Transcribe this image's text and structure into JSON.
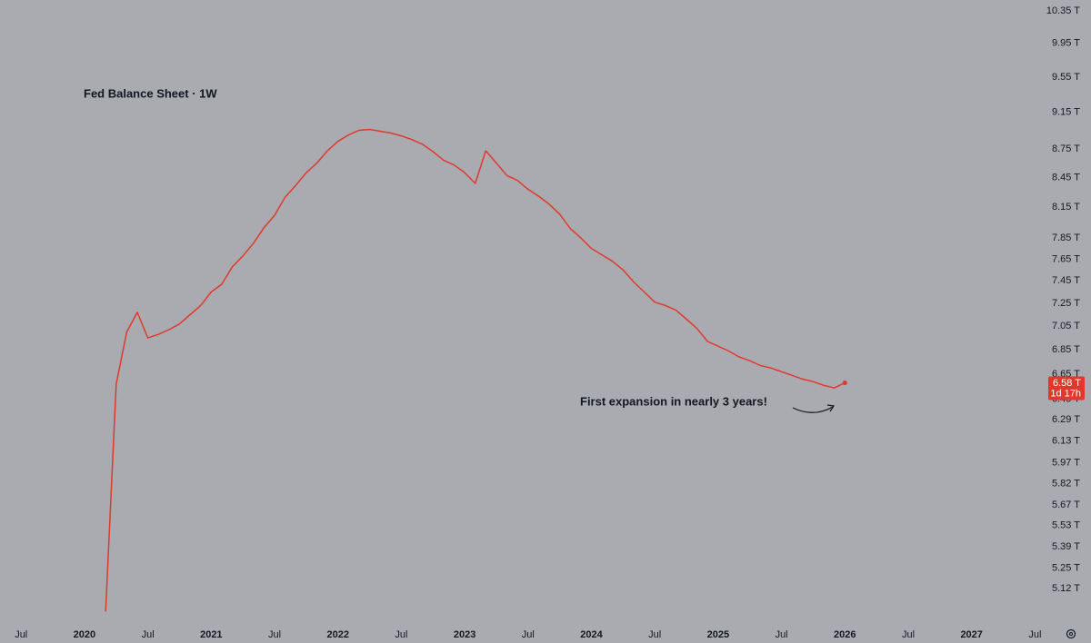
{
  "chart_data": {
    "type": "line",
    "title": "Fed Balance Sheet · 1W",
    "annotation": "First expansion in nearly 3 years!",
    "color": "#e0392b",
    "log_scale": true,
    "grid": false,
    "x": [
      "2020-03",
      "2020-04",
      "2020-05",
      "2020-06",
      "2020-07",
      "2020-08",
      "2020-09",
      "2020-10",
      "2020-11",
      "2020-12",
      "2021-01",
      "2021-02",
      "2021-03",
      "2021-04",
      "2021-05",
      "2021-06",
      "2021-07",
      "2021-08",
      "2021-09",
      "2021-10",
      "2021-11",
      "2021-12",
      "2022-01",
      "2022-02",
      "2022-03",
      "2022-04",
      "2022-05",
      "2022-06",
      "2022-07",
      "2022-08",
      "2022-09",
      "2022-10",
      "2022-11",
      "2022-12",
      "2023-01",
      "2023-02",
      "2023-03",
      "2023-04",
      "2023-05",
      "2023-06",
      "2023-07",
      "2023-08",
      "2023-09",
      "2023-10",
      "2023-11",
      "2023-12",
      "2024-01",
      "2024-02",
      "2024-03",
      "2024-04",
      "2024-05",
      "2024-06",
      "2024-07",
      "2024-08",
      "2024-09",
      "2024-10",
      "2024-11",
      "2024-12",
      "2025-01",
      "2025-02",
      "2025-03",
      "2025-04",
      "2025-05",
      "2025-06",
      "2025-07",
      "2025-08",
      "2025-09",
      "2025-10",
      "2025-11",
      "2025-12",
      "2026-01"
    ],
    "values": [
      4.98,
      6.57,
      7.0,
      7.17,
      6.95,
      6.98,
      7.02,
      7.07,
      7.15,
      7.23,
      7.35,
      7.42,
      7.58,
      7.68,
      7.8,
      7.95,
      8.07,
      8.25,
      8.37,
      8.5,
      8.6,
      8.73,
      8.83,
      8.9,
      8.95,
      8.96,
      8.94,
      8.92,
      8.89,
      8.85,
      8.8,
      8.72,
      8.63,
      8.58,
      8.5,
      8.39,
      8.73,
      8.6,
      8.47,
      8.42,
      8.33,
      8.26,
      8.18,
      8.08,
      7.94,
      7.85,
      7.75,
      7.69,
      7.63,
      7.55,
      7.44,
      7.35,
      7.26,
      7.23,
      7.19,
      7.11,
      7.03,
      6.92,
      6.88,
      6.84,
      6.79,
      6.76,
      6.72,
      6.7,
      6.67,
      6.64,
      6.61,
      6.59,
      6.56,
      6.54,
      6.58
    ],
    "last_price": {
      "value": 6.58,
      "label": "6.58 T",
      "countdown": "1d 17h"
    },
    "xlim": [
      "2019-05",
      "2027-08"
    ],
    "xticks": [
      {
        "value": "2019-07",
        "label": "Jul"
      },
      {
        "value": "2020-01",
        "label": "2020"
      },
      {
        "value": "2020-07",
        "label": "Jul"
      },
      {
        "value": "2021-01",
        "label": "2021"
      },
      {
        "value": "2021-07",
        "label": "Jul"
      },
      {
        "value": "2022-01",
        "label": "2022"
      },
      {
        "value": "2022-07",
        "label": "Jul"
      },
      {
        "value": "2023-01",
        "label": "2023"
      },
      {
        "value": "2023-07",
        "label": "Jul"
      },
      {
        "value": "2024-01",
        "label": "2024"
      },
      {
        "value": "2024-07",
        "label": "Jul"
      },
      {
        "value": "2025-01",
        "label": "2025"
      },
      {
        "value": "2025-07",
        "label": "Jul"
      },
      {
        "value": "2026-01",
        "label": "2026"
      },
      {
        "value": "2026-07",
        "label": "Jul"
      },
      {
        "value": "2027-01",
        "label": "2027"
      },
      {
        "value": "2027-07",
        "label": "Jul"
      }
    ],
    "ylim": [
      4.9,
      10.49
    ],
    "yticks": [
      {
        "value": 10.35,
        "label": "10.35 T"
      },
      {
        "value": 9.95,
        "label": "9.95 T"
      },
      {
        "value": 9.55,
        "label": "9.55 T"
      },
      {
        "value": 9.15,
        "label": "9.15 T"
      },
      {
        "value": 8.75,
        "label": "8.75 T"
      },
      {
        "value": 8.45,
        "label": "8.45 T"
      },
      {
        "value": 8.15,
        "label": "8.15 T"
      },
      {
        "value": 7.85,
        "label": "7.85 T"
      },
      {
        "value": 7.65,
        "label": "7.65 T"
      },
      {
        "value": 7.45,
        "label": "7.45 T"
      },
      {
        "value": 7.25,
        "label": "7.25 T"
      },
      {
        "value": 7.05,
        "label": "7.05 T"
      },
      {
        "value": 6.85,
        "label": "6.85 T"
      },
      {
        "value": 6.65,
        "label": "6.65 T"
      },
      {
        "value": 6.45,
        "label": "6.45 T"
      },
      {
        "value": 6.29,
        "label": "6.29 T"
      },
      {
        "value": 6.13,
        "label": "6.13 T"
      },
      {
        "value": 5.97,
        "label": "5.97 T"
      },
      {
        "value": 5.82,
        "label": "5.82 T"
      },
      {
        "value": 5.67,
        "label": "5.67 T"
      },
      {
        "value": 5.53,
        "label": "5.53 T"
      },
      {
        "value": 5.39,
        "label": "5.39 T"
      },
      {
        "value": 5.25,
        "label": "5.25 T"
      },
      {
        "value": 5.12,
        "label": "5.12 T"
      }
    ]
  }
}
